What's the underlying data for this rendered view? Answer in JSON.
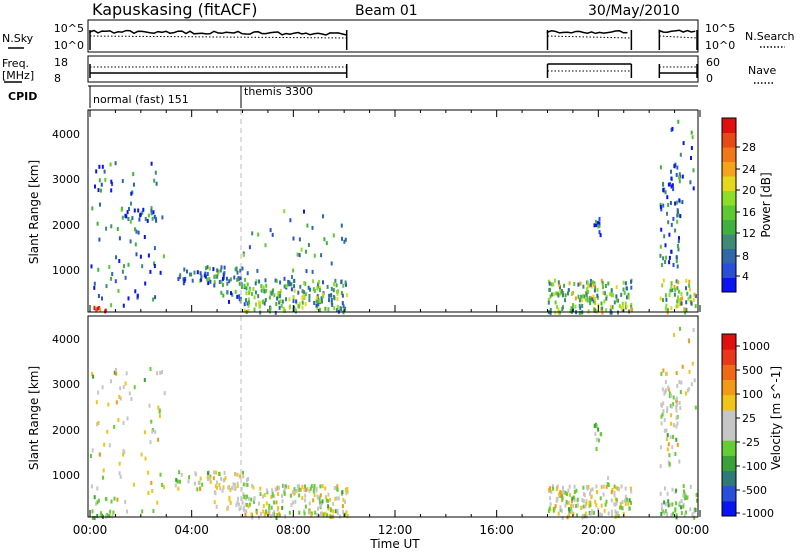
{
  "header": {
    "station": "Kapuskasing (fitACF)",
    "beam": "Beam 01",
    "date": "30/May/2010"
  },
  "time_axis": {
    "label": "Time UT",
    "ticks": [
      "00:00",
      "04:00",
      "08:00",
      "12:00",
      "16:00",
      "20:00",
      "00:00"
    ],
    "range_hours": [
      0,
      24
    ]
  },
  "operations": [
    {
      "start_hour": 0.0,
      "end_hour": 10.1
    },
    {
      "start_hour": 18.0,
      "end_hour": 21.3
    },
    {
      "start_hour": 22.4,
      "end_hour": 24.0
    }
  ],
  "noise_panel": {
    "left_label": "N.Sky",
    "right_label": "N.Search",
    "left_ticks": [
      "10^5",
      "10^0"
    ],
    "right_ticks": [
      "10^5",
      "10^0"
    ]
  },
  "freq_panel": {
    "left_label_1": "Freq.",
    "left_label_2": "[MHz]",
    "right_label": "Nave",
    "left_ticks": [
      "18",
      "8"
    ],
    "right_ticks": [
      "60",
      "0"
    ]
  },
  "cpid": {
    "label": "CPID",
    "modes": [
      {
        "name": "normal (fast) 151",
        "start_hour": 0.0
      },
      {
        "name": "themis 3300",
        "start_hour": 6.0
      }
    ]
  },
  "chart_data": [
    {
      "type": "heatmap",
      "title": "Power",
      "ylabel": "Slant Range [km]",
      "xlabel": "Time UT",
      "ylim": [
        180,
        4600
      ],
      "yticks": [
        "1000",
        "2000",
        "3000",
        "4000"
      ],
      "colorbar": {
        "label": "Power [dB]",
        "ticks": [
          "4",
          "8",
          "12",
          "16",
          "20",
          "24",
          "28"
        ],
        "range": [
          0,
          30
        ],
        "colors": [
          "#0a14f0",
          "#2a4ed8",
          "#2e68a8",
          "#3f8a74",
          "#40b040",
          "#5ec832",
          "#8edd28",
          "#e3d81c",
          "#f3a41a",
          "#f07818",
          "#e84a16",
          "#e01010"
        ]
      },
      "regions": [
        {
          "t": [
            0.0,
            0.6
          ],
          "r": [
            180,
            320
          ],
          "v": 27,
          "density": 0.9
        },
        {
          "t": [
            0.0,
            2.9
          ],
          "r": [
            300,
            3500
          ],
          "v": 6,
          "density": 0.08
        },
        {
          "t": [
            1.2,
            2.6
          ],
          "r": [
            2200,
            2500
          ],
          "v": 7,
          "density": 0.4
        },
        {
          "t": [
            3.3,
            6.2
          ],
          "r": [
            800,
            1200
          ],
          "v": 8,
          "density": 0.45
        },
        {
          "t": [
            4.8,
            6.0
          ],
          "r": [
            400,
            1000
          ],
          "v": 9,
          "density": 0.25
        },
        {
          "t": [
            6.0,
            10.1
          ],
          "r": [
            180,
            900
          ],
          "v": 12,
          "density": 0.55
        },
        {
          "t": [
            6.0,
            10.1
          ],
          "r": [
            900,
            2500
          ],
          "v": 10,
          "density": 0.05
        },
        {
          "t": [
            18.0,
            21.3
          ],
          "r": [
            180,
            900
          ],
          "v": 13,
          "density": 0.6
        },
        {
          "t": [
            19.8,
            20.1
          ],
          "r": [
            1700,
            2300
          ],
          "v": 5,
          "density": 0.5
        },
        {
          "t": [
            22.4,
            23.2
          ],
          "r": [
            1200,
            3500
          ],
          "v": 6,
          "density": 0.3
        },
        {
          "t": [
            22.4,
            24.0
          ],
          "r": [
            180,
            900
          ],
          "v": 14,
          "density": 0.45
        },
        {
          "t": [
            22.8,
            24.0
          ],
          "r": [
            2500,
            4500
          ],
          "v": 6,
          "density": 0.08
        }
      ]
    },
    {
      "type": "heatmap",
      "title": "Velocity",
      "ylabel": "Slant Range [km]",
      "xlabel": "Time UT",
      "ylim": [
        180,
        4600
      ],
      "yticks": [
        "1000",
        "2000",
        "3000",
        "4000"
      ],
      "colorbar": {
        "label": "Velocity [m s^-1]",
        "ticks": [
          "1000",
          "500",
          "100",
          "25",
          "-25",
          "-100",
          "-500",
          "-1000"
        ],
        "range": [
          -1200,
          1200
        ],
        "colors": [
          "#0a14f0",
          "#2a4ed8",
          "#2e7a7a",
          "#3aa03a",
          "#66cc33",
          "#c6c6c6",
          "#c6c6c6",
          "#f0c418",
          "#f09a18",
          "#ef6a16",
          "#e8381a",
          "#e01010"
        ]
      },
      "regions": [
        {
          "t": [
            0.0,
            1.0
          ],
          "r": [
            180,
            320
          ],
          "v": -350,
          "density": 0.85
        },
        {
          "t": [
            0.0,
            2.9
          ],
          "r": [
            300,
            3500
          ],
          "v": 0,
          "density": 0.08
        },
        {
          "t": [
            3.3,
            6.2
          ],
          "r": [
            800,
            1200
          ],
          "v": 0,
          "density": 0.45
        },
        {
          "t": [
            4.8,
            6.0
          ],
          "r": [
            300,
            900
          ],
          "v": 80,
          "density": 0.3
        },
        {
          "t": [
            6.0,
            10.1
          ],
          "r": [
            180,
            900
          ],
          "v": 0,
          "density": 0.55
        },
        {
          "t": [
            18.0,
            21.3
          ],
          "r": [
            180,
            900
          ],
          "v": 0,
          "density": 0.6
        },
        {
          "t": [
            19.8,
            20.1
          ],
          "r": [
            1700,
            2300
          ],
          "v": -300,
          "density": 0.5
        },
        {
          "t": [
            20.3,
            20.5
          ],
          "r": [
            900,
            1100
          ],
          "v": -300,
          "density": 0.6
        },
        {
          "t": [
            22.4,
            23.2
          ],
          "r": [
            1200,
            3500
          ],
          "v": 0,
          "density": 0.3
        },
        {
          "t": [
            22.4,
            24.0
          ],
          "r": [
            180,
            900
          ],
          "v": -200,
          "density": 0.45
        },
        {
          "t": [
            22.8,
            24.0
          ],
          "r": [
            2500,
            4500
          ],
          "v": 0,
          "density": 0.08
        }
      ]
    }
  ]
}
